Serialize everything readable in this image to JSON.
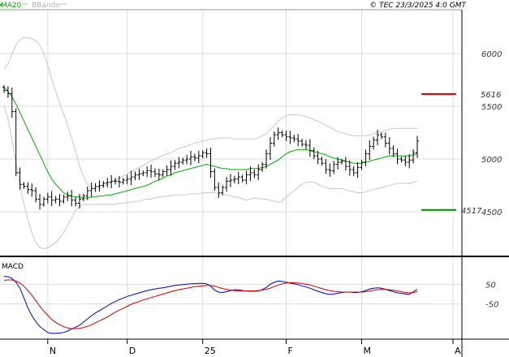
{
  "header": {
    "legend_ma": "MA20",
    "legend_bb": "BBands",
    "copyright": "© TEC 23/3/2025 4:0 GMT"
  },
  "colors": {
    "price": "#000000",
    "ma": "#00aa00",
    "bands": "#c8c8c8",
    "resistance": "#cc0000",
    "support": "#008800",
    "macd": "#0000cc",
    "signal": "#cc0000",
    "grid": "#dcdcdc"
  },
  "chart_data": [
    {
      "type": "ohlc",
      "title": "",
      "grid": true,
      "ylim": [
        4100,
        6400
      ],
      "y_ticks": [
        {
          "value": 6000,
          "label": "6000"
        },
        {
          "value": 5500,
          "label": "5500"
        },
        {
          "value": 5000,
          "label": "5000"
        },
        {
          "value": 4500,
          "label": "4500"
        }
      ],
      "x_ticks": [
        {
          "label": "N",
          "bar": 11
        },
        {
          "label": "D",
          "bar": 31
        },
        {
          "label": "25",
          "bar": 50
        },
        {
          "label": "F",
          "bar": 71
        },
        {
          "label": "M",
          "bar": 90
        },
        {
          "label": "A",
          "bar": 113
        }
      ],
      "resistance": {
        "value": 5616,
        "label": "5616"
      },
      "support": {
        "value": 4517,
        "label": "4517"
      },
      "closes": [
        5650,
        5620,
        5450,
        4870,
        4760,
        4740,
        4710,
        4700,
        4620,
        4570,
        4620,
        4640,
        4610,
        4620,
        4600,
        4640,
        4650,
        4610,
        4580,
        4620,
        4650,
        4700,
        4720,
        4740,
        4750,
        4770,
        4780,
        4790,
        4790,
        4780,
        4800,
        4810,
        4830,
        4850,
        4860,
        4870,
        4890,
        4880,
        4860,
        4850,
        4880,
        4900,
        4930,
        4960,
        4970,
        4990,
        5000,
        5020,
        5010,
        5030,
        5060,
        5050,
        4880,
        4730,
        4680,
        4730,
        4790,
        4800,
        4810,
        4830,
        4800,
        4850,
        4870,
        4850,
        4900,
        4950,
        5050,
        5150,
        5230,
        5250,
        5230,
        5210,
        5200,
        5190,
        5170,
        5140,
        5130,
        5080,
        5030,
        5000,
        4960,
        4900,
        4890,
        4950,
        4970,
        4980,
        4930,
        4900,
        4870,
        4920,
        4970,
        5050,
        5120,
        5180,
        5230,
        5210,
        5150,
        5100,
        5050,
        5000,
        4990,
        4970,
        4990,
        5060,
        5170
      ],
      "ma20": [
        5680,
        5640,
        5590,
        5520,
        5440,
        5360,
        5280,
        5200,
        5120,
        5040,
        4960,
        4880,
        4810,
        4760,
        4720,
        4680,
        4660,
        4650,
        4640,
        4640,
        4630,
        4630,
        4640,
        4640,
        4650,
        4650,
        4660,
        4660,
        4670,
        4680,
        4690,
        4700,
        4710,
        4720,
        4730,
        4740,
        4750,
        4770,
        4790,
        4800,
        4820,
        4840,
        4850,
        4870,
        4880,
        4890,
        4900,
        4910,
        4920,
        4930,
        4940,
        4950,
        4940,
        4930,
        4920,
        4910,
        4910,
        4900,
        4900,
        4900,
        4900,
        4900,
        4910,
        4910,
        4910,
        4920,
        4930,
        4950,
        4970,
        4990,
        5020,
        5050,
        5070,
        5080,
        5090,
        5090,
        5090,
        5080,
        5070,
        5060,
        5050,
        5040,
        5020,
        5010,
        5000,
        4990,
        4980,
        4970,
        4960,
        4960,
        4960,
        4970,
        4980,
        4990,
        5000,
        5010,
        5020,
        5030,
        5030,
        5030,
        5030,
        5030,
        5030,
        5040,
        5050
      ],
      "bb_upper": [
        5850,
        5900,
        6000,
        6080,
        6130,
        6150,
        6150,
        6140,
        6120,
        6080,
        6000,
        5890,
        5760,
        5640,
        5530,
        5430,
        5320,
        5200,
        5070,
        4940,
        4830,
        4760,
        4730,
        4720,
        4730,
        4740,
        4760,
        4780,
        4800,
        4820,
        4840,
        4860,
        4880,
        4900,
        4920,
        4940,
        4960,
        4980,
        5000,
        5020,
        5030,
        5050,
        5060,
        5080,
        5100,
        5110,
        5120,
        5140,
        5150,
        5160,
        5170,
        5180,
        5190,
        5190,
        5200,
        5200,
        5200,
        5200,
        5190,
        5190,
        5190,
        5190,
        5190,
        5190,
        5200,
        5220,
        5240,
        5280,
        5320,
        5360,
        5390,
        5410,
        5420,
        5420,
        5420,
        5410,
        5400,
        5390,
        5370,
        5360,
        5340,
        5320,
        5300,
        5280,
        5260,
        5250,
        5240,
        5230,
        5220,
        5220,
        5220,
        5220,
        5230,
        5240,
        5250,
        5260,
        5270,
        5280,
        5290,
        5290,
        5290,
        5290,
        5290,
        5290,
        5290
      ],
      "bb_lower": [
        5500,
        5380,
        5180,
        4960,
        4750,
        4570,
        4420,
        4300,
        4210,
        4160,
        4150,
        4160,
        4180,
        4210,
        4250,
        4300,
        4370,
        4440,
        4510,
        4550,
        4570,
        4570,
        4570,
        4570,
        4570,
        4570,
        4570,
        4570,
        4570,
        4580,
        4580,
        4590,
        4590,
        4600,
        4600,
        4610,
        4620,
        4620,
        4630,
        4640,
        4640,
        4650,
        4650,
        4660,
        4660,
        4660,
        4660,
        4670,
        4670,
        4670,
        4680,
        4680,
        4680,
        4680,
        4670,
        4660,
        4660,
        4650,
        4640,
        4640,
        4620,
        4610,
        4620,
        4630,
        4630,
        4620,
        4620,
        4610,
        4600,
        4590,
        4600,
        4640,
        4670,
        4700,
        4730,
        4760,
        4780,
        4780,
        4780,
        4760,
        4740,
        4730,
        4720,
        4720,
        4720,
        4720,
        4710,
        4700,
        4690,
        4680,
        4680,
        4690,
        4700,
        4710,
        4720,
        4730,
        4740,
        4750,
        4760,
        4770,
        4770,
        4770,
        4770,
        4780,
        4790
      ]
    },
    {
      "type": "line",
      "title": "MACD",
      "grid": true,
      "ylim": [
        -225,
        175
      ],
      "y_ticks": [
        {
          "value": 50,
          "label": "50"
        },
        {
          "value": -50,
          "label": "-50"
        }
      ],
      "series": [
        {
          "name": "",
          "color": "#0000cc",
          "values": [
            90,
            88,
            80,
            60,
            30,
            -20,
            -70,
            -110,
            -140,
            -165,
            -180,
            -195,
            -200,
            -200,
            -198,
            -195,
            -188,
            -178,
            -168,
            -158,
            -142,
            -126,
            -110,
            -96,
            -84,
            -72,
            -60,
            -48,
            -38,
            -28,
            -20,
            -12,
            -6,
            0,
            6,
            12,
            18,
            22,
            26,
            30,
            32,
            36,
            40,
            44,
            46,
            48,
            50,
            52,
            52,
            54,
            54,
            52,
            40,
            20,
            10,
            8,
            12,
            18,
            22,
            22,
            18,
            16,
            14,
            14,
            16,
            22,
            34,
            50,
            60,
            66,
            64,
            60,
            56,
            52,
            48,
            42,
            36,
            30,
            22,
            14,
            8,
            2,
            -2,
            0,
            4,
            8,
            10,
            10,
            8,
            8,
            12,
            18,
            26,
            30,
            32,
            30,
            24,
            18,
            12,
            6,
            4,
            0,
            -2,
            12,
            24
          ]
        },
        {
          "name": "",
          "color": "#cc0000",
          "values": [
            70,
            72,
            72,
            66,
            56,
            40,
            18,
            -6,
            -34,
            -62,
            -86,
            -108,
            -128,
            -144,
            -156,
            -166,
            -172,
            -176,
            -176,
            -174,
            -170,
            -164,
            -156,
            -146,
            -136,
            -126,
            -116,
            -104,
            -92,
            -82,
            -72,
            -62,
            -52,
            -44,
            -38,
            -30,
            -24,
            -18,
            -12,
            -6,
            0,
            6,
            12,
            18,
            22,
            26,
            30,
            34,
            38,
            40,
            42,
            44,
            44,
            40,
            34,
            28,
            24,
            20,
            18,
            16,
            16,
            16,
            16,
            16,
            18,
            20,
            24,
            30,
            38,
            46,
            52,
            56,
            58,
            58,
            56,
            54,
            50,
            46,
            40,
            34,
            28,
            22,
            18,
            14,
            12,
            10,
            10,
            10,
            10,
            10,
            10,
            12,
            16,
            20,
            22,
            24,
            24,
            22,
            20,
            16,
            12,
            8,
            6,
            8,
            12
          ]
        }
      ]
    }
  ]
}
